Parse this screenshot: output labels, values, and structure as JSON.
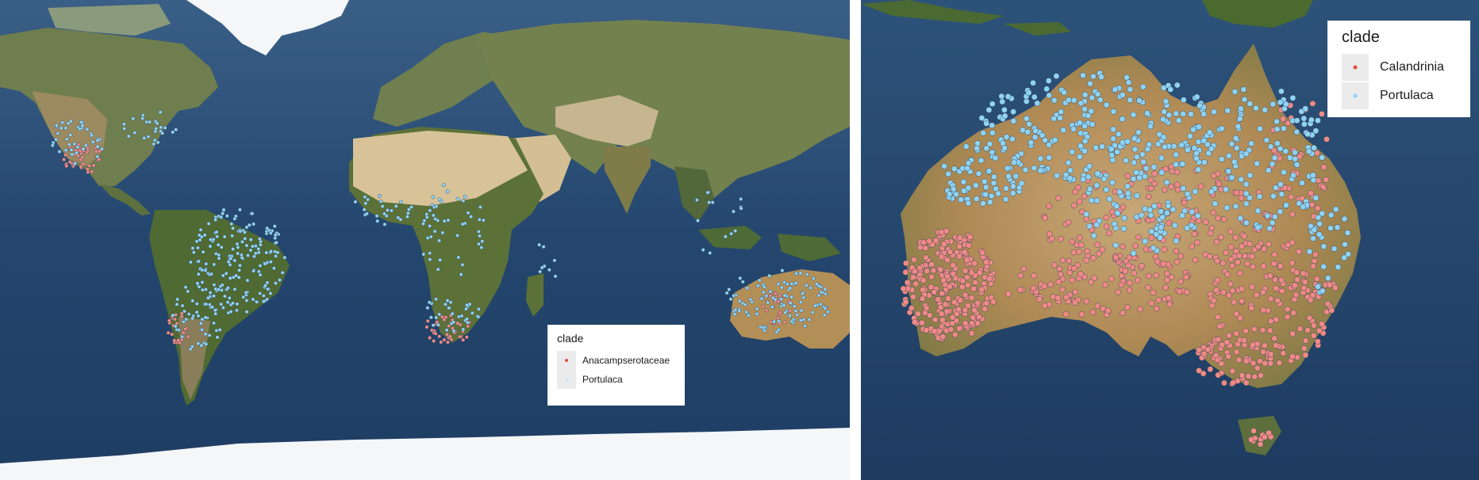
{
  "world_map": {
    "legend": {
      "title": "clade",
      "items": [
        {
          "label": "Anacampserotaceae",
          "color": "#e8473a"
        },
        {
          "label": "Portulaca",
          "color": "#cfe6f2"
        }
      ]
    },
    "point_colors": {
      "clade_a": "#f08a86",
      "clade_b": "#8fd3f4"
    },
    "basemap": "satellite world imagery"
  },
  "australia_map": {
    "legend": {
      "title": "clade",
      "items": [
        {
          "label": "Calandrinia",
          "color": "#e8473a"
        },
        {
          "label": "Portulaca",
          "color": "#8fd3f4"
        }
      ]
    },
    "point_colors": {
      "clade_a": "#f08a86",
      "clade_b": "#8fd3f4"
    },
    "basemap": "satellite imagery of Australia"
  }
}
